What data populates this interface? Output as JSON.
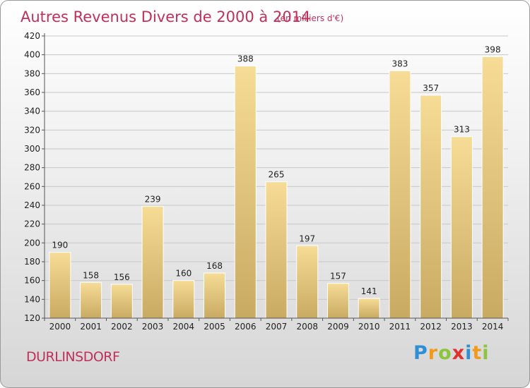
{
  "header": {
    "title": "Autres Revenus Divers de 2000 à 2014",
    "subtitle": "(en milliers d'€)"
  },
  "footer": {
    "place": "DURLINSDORF",
    "logo_letters": [
      {
        "ch": "P",
        "color": "#2f8fd6"
      },
      {
        "ch": "r",
        "color": "#f29a1e"
      },
      {
        "ch": "o",
        "color": "#8cc43c"
      },
      {
        "ch": "x",
        "color": "#e2312c"
      },
      {
        "ch": "i",
        "color": "#2f8fd6"
      },
      {
        "ch": "t",
        "color": "#f29a1e"
      },
      {
        "ch": "i",
        "color": "#8cc43c"
      }
    ]
  },
  "chart_data": {
    "type": "bar",
    "title": "Autres Revenus Divers de 2000 à 2014",
    "subtitle": "(en milliers d'€)",
    "categories": [
      "2000",
      "2001",
      "2002",
      "2003",
      "2004",
      "2005",
      "2006",
      "2007",
      "2008",
      "2009",
      "2010",
      "2011",
      "2012",
      "2013",
      "2014"
    ],
    "values": [
      190,
      158,
      156,
      239,
      160,
      168,
      388,
      265,
      197,
      157,
      141,
      383,
      357,
      313,
      398
    ],
    "ylim": [
      120,
      420
    ],
    "yticks": [
      120,
      140,
      160,
      180,
      200,
      220,
      240,
      260,
      280,
      300,
      320,
      340,
      360,
      380,
      400,
      420
    ],
    "grid": true,
    "bar_color_top": "#f6dc96",
    "bar_color_bottom": "#c9aa62",
    "axis_color": "#555555",
    "grid_color": "#c8c8c8",
    "title_color": "#c0305a"
  }
}
